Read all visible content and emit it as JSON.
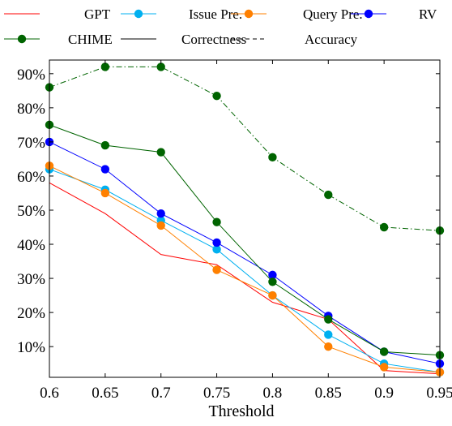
{
  "chart_data": {
    "type": "line",
    "xlabel": "Threshold",
    "ylabel": "",
    "x": [
      0.6,
      0.65,
      0.7,
      0.75,
      0.8,
      0.85,
      0.9,
      0.95
    ],
    "x_tick_labels": [
      "0.6",
      "0.65",
      "0.7",
      "0.75",
      "0.8",
      "0.85",
      "0.9",
      "0.95"
    ],
    "xlim": [
      0.6,
      0.95
    ],
    "ylim": [
      1,
      94
    ],
    "y_ticks": [
      10,
      20,
      30,
      40,
      50,
      60,
      70,
      80,
      90
    ],
    "y_tick_labels": [
      "10%",
      "20%",
      "30%",
      "40%",
      "50%",
      "60%",
      "70%",
      "80%",
      "90%"
    ],
    "grid": false,
    "legend_position": "top",
    "legend": [
      {
        "label": "GPT",
        "color": "#ff0000",
        "style": "solid",
        "marker": "none"
      },
      {
        "label": "Issue Pre.",
        "color": "#00b0f0",
        "style": "solid",
        "marker": "circle"
      },
      {
        "label": "Query Pre.",
        "color": "#ff8000",
        "style": "solid",
        "marker": "circle"
      },
      {
        "label": "RV",
        "color": "#0000ff",
        "style": "solid",
        "marker": "circle"
      },
      {
        "label": "CHIME",
        "color": "#006400",
        "style": "solid",
        "marker": "circle"
      },
      {
        "label": "Correctness",
        "color": "#000000",
        "style": "solid",
        "marker": "none"
      },
      {
        "label": "Accuracy",
        "color": "#000000",
        "style": "dashed",
        "marker": "none"
      }
    ],
    "series": [
      {
        "name": "GPT",
        "color": "#ff0000",
        "marker": "none",
        "dash": "solid",
        "values": [
          58,
          49,
          37,
          34,
          23,
          18,
          3,
          2
        ]
      },
      {
        "name": "Issue Pre.",
        "color": "#00b0f0",
        "marker": "circle",
        "dash": "solid",
        "values": [
          62,
          56,
          47,
          38.5,
          25,
          13.5,
          5,
          2.5
        ]
      },
      {
        "name": "Query Pre.",
        "color": "#ff8000",
        "marker": "circle",
        "dash": "solid",
        "values": [
          63,
          55,
          45.5,
          32.5,
          25,
          10,
          4,
          2.5
        ]
      },
      {
        "name": "RV",
        "color": "#0000ff",
        "marker": "circle",
        "dash": "solid",
        "values": [
          70,
          62,
          49,
          40.5,
          31,
          19,
          8.5,
          5
        ]
      },
      {
        "name": "CHIME",
        "color": "#006400",
        "marker": "circle",
        "dash": "solid",
        "values": [
          75,
          69,
          67,
          46.5,
          29,
          18,
          8.5,
          7.5
        ]
      },
      {
        "name": "CHIME",
        "color": "#006400",
        "marker": "circle",
        "dash": "dashdot",
        "values": [
          86,
          92,
          92,
          83.5,
          65.5,
          54.5,
          45,
          44
        ]
      }
    ]
  }
}
